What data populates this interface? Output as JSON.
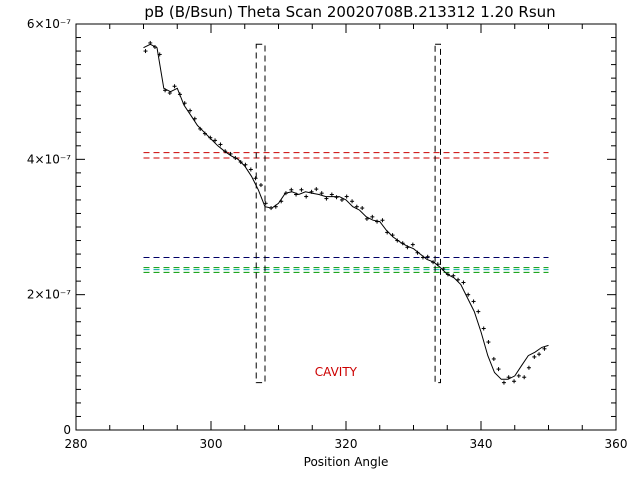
{
  "chart_data": {
    "type": "line",
    "title": "pB (B/Bsun) Theta Scan 20020708B.213312 1.20 Rsun",
    "xlabel": "Position Angle",
    "ylabel": "",
    "xlim": [
      280,
      360
    ],
    "ylim": [
      0,
      6e-07
    ],
    "x_ticks": [
      {
        "value": 280,
        "label": "280"
      },
      {
        "value": 300,
        "label": "300"
      },
      {
        "value": 320,
        "label": "320"
      },
      {
        "value": 340,
        "label": "340"
      },
      {
        "value": 360,
        "label": "360"
      }
    ],
    "y_ticks": [
      {
        "value": 0,
        "label": "0"
      },
      {
        "value": 2e-07,
        "label": "2×10⁻⁷"
      },
      {
        "value": 4e-07,
        "label": "4×10⁻⁷"
      },
      {
        "value": 6e-07,
        "label": "6×10⁻⁷"
      }
    ],
    "grid": false,
    "series": [
      {
        "color": "#000000",
        "x": [
          290,
          291,
          292,
          293,
          294,
          295,
          296,
          297,
          298,
          299,
          300,
          301,
          302,
          303,
          304,
          305,
          306,
          307,
          308,
          309,
          310,
          311,
          312,
          313,
          314,
          315,
          316,
          317,
          318,
          319,
          320,
          321,
          322,
          323,
          324,
          325,
          326,
          327,
          328,
          329,
          330,
          331,
          332,
          333,
          334,
          335,
          336,
          337,
          338,
          339,
          340,
          341,
          342,
          343,
          344,
          345,
          346,
          347,
          348,
          349,
          350
        ],
        "y": [
          5.65e-07,
          5.7e-07,
          5.65e-07,
          5.05e-07,
          5e-07,
          5.05e-07,
          4.8e-07,
          4.65e-07,
          4.5e-07,
          4.4e-07,
          4.3e-07,
          4.2e-07,
          4.12e-07,
          4.05e-07,
          4e-07,
          3.9e-07,
          3.75e-07,
          3.55e-07,
          3.3e-07,
          3.28e-07,
          3.35e-07,
          3.5e-07,
          3.52e-07,
          3.48e-07,
          3.52e-07,
          3.5e-07,
          3.48e-07,
          3.45e-07,
          3.45e-07,
          3.45e-07,
          3.4e-07,
          3.3e-07,
          3.25e-07,
          3.15e-07,
          3.1e-07,
          3.08e-07,
          2.95e-07,
          2.85e-07,
          2.78e-07,
          2.72e-07,
          2.68e-07,
          2.6e-07,
          2.52e-07,
          2.48e-07,
          2.4e-07,
          2.3e-07,
          2.25e-07,
          2.15e-07,
          1.95e-07,
          1.75e-07,
          1.45e-07,
          1.1e-07,
          8.5e-08,
          7.5e-08,
          7.5e-08,
          8e-08,
          9.5e-08,
          1.1e-07,
          1.15e-07,
          1.22e-07,
          1.25e-07
        ]
      },
      {
        "color": "#000000",
        "marker": "plus",
        "x": [
          290.3,
          291.0,
          291.7,
          292.4,
          293.2,
          293.9,
          294.6,
          295.4,
          296.1,
          296.9,
          297.6,
          298.4,
          299.1,
          299.9,
          300.6,
          301.4,
          302.1,
          302.9,
          303.6,
          304.4,
          305.1,
          305.9,
          306.6,
          307.4,
          308.1,
          308.9,
          309.6,
          310.4,
          311.1,
          311.9,
          312.6,
          313.4,
          314.1,
          314.9,
          315.6,
          316.4,
          317.1,
          317.9,
          318.6,
          319.4,
          320.1,
          320.9,
          321.6,
          322.4,
          323.1,
          323.9,
          324.6,
          325.4,
          326.1,
          326.9,
          327.6,
          328.4,
          329.1,
          329.9,
          330.6,
          331.4,
          332.1,
          332.9,
          333.6,
          334.4,
          335.1,
          335.9,
          336.6,
          337.4,
          338.1,
          338.9,
          339.6,
          340.4,
          341.1,
          341.9,
          342.6,
          343.4,
          344.1,
          344.9,
          345.6,
          346.4,
          347.1,
          347.9,
          348.6,
          349.4
        ],
        "y": [
          5.6e-07,
          5.72e-07,
          5.66e-07,
          5.55e-07,
          5.02e-07,
          4.98e-07,
          5.08e-07,
          4.96e-07,
          4.83e-07,
          4.72e-07,
          4.6e-07,
          4.45e-07,
          4.38e-07,
          4.32e-07,
          4.28e-07,
          4.22e-07,
          4.12e-07,
          4.08e-07,
          4.02e-07,
          3.96e-07,
          3.92e-07,
          3.85e-07,
          3.72e-07,
          3.62e-07,
          3.35e-07,
          3.28e-07,
          3.3e-07,
          3.38e-07,
          3.5e-07,
          3.55e-07,
          3.48e-07,
          3.55e-07,
          3.45e-07,
          3.52e-07,
          3.56e-07,
          3.5e-07,
          3.42e-07,
          3.48e-07,
          3.44e-07,
          3.4e-07,
          3.45e-07,
          3.38e-07,
          3.3e-07,
          3.28e-07,
          3.12e-07,
          3.15e-07,
          3.08e-07,
          3.1e-07,
          2.92e-07,
          2.88e-07,
          2.8e-07,
          2.76e-07,
          2.7e-07,
          2.74e-07,
          2.62e-07,
          2.55e-07,
          2.56e-07,
          2.48e-07,
          2.45e-07,
          2.38e-07,
          2.3e-07,
          2.28e-07,
          2.22e-07,
          2.18e-07,
          2e-07,
          1.9e-07,
          1.75e-07,
          1.5e-07,
          1.3e-07,
          1.05e-07,
          9e-08,
          7e-08,
          7.8e-08,
          7.2e-08,
          8e-08,
          7.8e-08,
          9.2e-08,
          1.08e-07,
          1.12e-07,
          1.2e-07
        ]
      }
    ],
    "hlines": [
      {
        "y": 4.1e-07,
        "color": "#cc0000"
      },
      {
        "y": 4.02e-07,
        "color": "#cc0000"
      },
      {
        "y": 2.55e-07,
        "color": "#000066"
      },
      {
        "y": 2.4e-07,
        "color": "#009900"
      },
      {
        "y": 2.37e-07,
        "color": "#00aaaa"
      },
      {
        "y": 2.33e-07,
        "color": "#009900"
      }
    ],
    "vboxes": [
      {
        "x0": 306.7,
        "x1": 308.0,
        "y0": 7e-08,
        "y1": 5.7e-07,
        "color": "#000000"
      },
      {
        "x0": 333.2,
        "x1": 334.0,
        "y0": 7e-08,
        "y1": 5.7e-07,
        "color": "#000000"
      }
    ],
    "annotations": [
      {
        "text": "CAVITY",
        "x": 318.5,
        "y": 8e-08,
        "color": "#cc0000"
      }
    ]
  }
}
